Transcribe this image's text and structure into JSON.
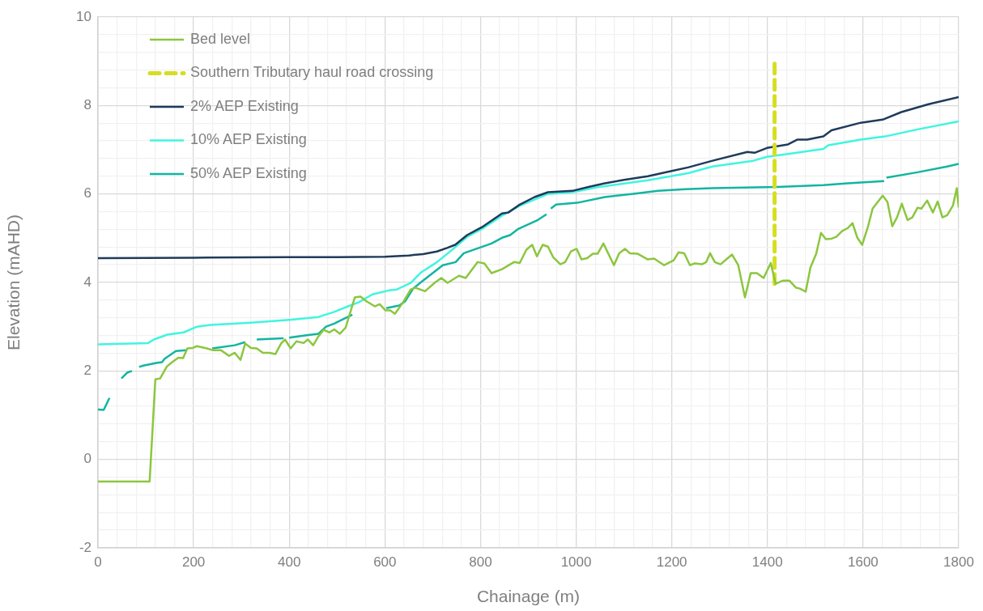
{
  "chart_data": {
    "type": "line",
    "xlabel": "Chainage (m)",
    "ylabel": "Elevation (mAHD)",
    "grid": true,
    "legend": "top left",
    "marker": "none",
    "xlim": [
      0,
      1800
    ],
    "ylim": [
      -2,
      10
    ],
    "xticks": [
      0,
      {
        "value": 40,
        "label": null
      },
      {
        "value": 80,
        "label": null
      },
      {
        "value": 120,
        "label": null
      },
      {
        "value": 160,
        "label": null
      },
      200,
      {
        "value": 240,
        "label": null
      },
      {
        "value": 280,
        "label": null
      },
      {
        "value": 320,
        "label": null
      },
      {
        "value": 360,
        "label": null
      },
      400,
      {
        "value": 440,
        "label": null
      },
      {
        "value": 480,
        "label": null
      },
      {
        "value": 520,
        "label": null
      },
      {
        "value": 560,
        "label": null
      },
      600,
      {
        "value": 640,
        "label": null
      },
      {
        "value": 680,
        "label": null
      },
      {
        "value": 720,
        "label": null
      },
      {
        "value": 760,
        "label": null
      },
      800,
      {
        "value": 840,
        "label": null
      },
      {
        "value": 880,
        "label": null
      },
      {
        "value": 920,
        "label": null
      },
      {
        "value": 960,
        "label": null
      },
      1000,
      {
        "value": 1040,
        "label": null
      },
      {
        "value": 1080,
        "label": null
      },
      {
        "value": 1120,
        "label": null
      },
      {
        "value": 1160,
        "label": null
      },
      1200,
      {
        "value": 1240,
        "label": null
      },
      {
        "value": 1280,
        "label": null
      },
      {
        "value": 1320,
        "label": null
      },
      {
        "value": 1360,
        "label": null
      },
      1400,
      {
        "value": 1440,
        "label": null
      },
      {
        "value": 1480,
        "label": null
      },
      {
        "value": 1520,
        "label": null
      },
      {
        "value": 1560,
        "label": null
      },
      1600,
      {
        "value": 1640,
        "label": null
      },
      {
        "value": 1680,
        "label": null
      },
      {
        "value": 1720,
        "label": null
      },
      {
        "value": 1760,
        "label": null
      },
      1800
    ],
    "yticks": [
      -2,
      {
        "value": -1.6,
        "label": null
      },
      {
        "value": -1.2,
        "label": null
      },
      {
        "value": -0.8,
        "label": null
      },
      {
        "value": -0.4,
        "label": null
      },
      0,
      {
        "value": 0.4,
        "label": null
      },
      {
        "value": 0.8,
        "label": null
      },
      {
        "value": 1.2,
        "label": null
      },
      {
        "value": 1.6,
        "label": null
      },
      2,
      {
        "value": 2.4,
        "label": null
      },
      {
        "value": 2.8,
        "label": null
      },
      {
        "value": 3.2,
        "label": null
      },
      {
        "value": 3.6,
        "label": null
      },
      4,
      {
        "value": 4.4,
        "label": null
      },
      {
        "value": 4.8,
        "label": null
      },
      {
        "value": 5.2,
        "label": null
      },
      {
        "value": 5.6,
        "label": null
      },
      6,
      {
        "value": 6.4,
        "label": null
      },
      {
        "value": 6.8,
        "label": null
      },
      {
        "value": 7.2,
        "label": null
      },
      {
        "value": 7.6,
        "label": null
      },
      8,
      {
        "value": 8.4,
        "label": null
      },
      {
        "value": 8.8,
        "label": null
      },
      {
        "value": 9.2,
        "label": null
      },
      {
        "value": 9.6,
        "label": null
      },
      10
    ],
    "series": [
      {
        "name": "Bed level",
        "type": "line",
        "color": "#8cc63f",
        "x": [
          0,
          108,
          120,
          130,
          144,
          154,
          168,
          178,
          187,
          198,
          207,
          224,
          240,
          257,
          274,
          286,
          298,
          308,
          320,
          332,
          345,
          359,
          371,
          383,
          391,
          403,
          415,
          430,
          439,
          450,
          461,
          472,
          484,
          494,
          506,
          518,
          537,
          549,
          562,
          579,
          589,
          601,
          611,
          621,
          638,
          654,
          664,
          684,
          704,
          718,
          731,
          755,
          769,
          794,
          808,
          823,
          845,
          870,
          882,
          896,
          908,
          918,
          930,
          941,
          952,
          967,
          977,
          989,
          1001,
          1011,
          1023,
          1035,
          1045,
          1057,
          1079,
          1090,
          1102,
          1112,
          1128,
          1150,
          1163,
          1184,
          1204,
          1214,
          1226,
          1238,
          1248,
          1263,
          1272,
          1280,
          1290,
          1302,
          1316,
          1326,
          1339,
          1353,
          1365,
          1378,
          1392,
          1407,
          1417,
          1432,
          1446,
          1460,
          1468,
          1480,
          1490,
          1502,
          1512,
          1522,
          1534,
          1544,
          1556,
          1568,
          1578,
          1588,
          1598,
          1610,
          1620,
          1641,
          1651,
          1661,
          1671,
          1681,
          1693,
          1703,
          1714,
          1722,
          1734,
          1746,
          1756,
          1766,
          1776,
          1788,
          1796,
          1800
        ],
        "values": [
          -0.5,
          -0.5,
          1.81,
          1.83,
          2.1,
          2.19,
          2.3,
          2.29,
          2.51,
          2.52,
          2.56,
          2.52,
          2.47,
          2.47,
          2.34,
          2.41,
          2.25,
          2.62,
          2.52,
          2.51,
          2.41,
          2.41,
          2.38,
          2.62,
          2.71,
          2.51,
          2.67,
          2.63,
          2.71,
          2.58,
          2.78,
          2.93,
          2.87,
          2.94,
          2.84,
          2.98,
          3.66,
          3.68,
          3.57,
          3.46,
          3.51,
          3.37,
          3.37,
          3.29,
          3.55,
          3.84,
          3.88,
          3.8,
          3.99,
          4.1,
          3.99,
          4.15,
          4.1,
          4.46,
          4.43,
          4.21,
          4.3,
          4.46,
          4.44,
          4.74,
          4.85,
          4.59,
          4.85,
          4.81,
          4.57,
          4.41,
          4.46,
          4.7,
          4.76,
          4.52,
          4.55,
          4.65,
          4.65,
          4.88,
          4.39,
          4.66,
          4.76,
          4.66,
          4.65,
          4.52,
          4.54,
          4.39,
          4.5,
          4.68,
          4.66,
          4.39,
          4.43,
          4.41,
          4.46,
          4.66,
          4.46,
          4.41,
          4.54,
          4.63,
          4.39,
          3.66,
          4.21,
          4.21,
          4.1,
          4.44,
          3.97,
          4.04,
          4.04,
          3.88,
          3.86,
          3.79,
          4.34,
          4.65,
          5.12,
          4.98,
          4.99,
          5.03,
          5.16,
          5.23,
          5.34,
          5.01,
          4.85,
          5.25,
          5.67,
          5.96,
          5.82,
          5.27,
          5.47,
          5.78,
          5.41,
          5.47,
          5.69,
          5.67,
          5.85,
          5.58,
          5.83,
          5.47,
          5.52,
          5.74,
          6.13,
          5.69
        ]
      },
      {
        "name": "Southern Tributary haul road crossing",
        "type": "line",
        "line_style": "dashed",
        "color": "#d6de23",
        "x": [
          1415,
          1415
        ],
        "values": [
          3.97,
          9.05
        ]
      },
      {
        "name": "2% AEP Existing",
        "type": "line",
        "color": "#1f3b5a",
        "x": [
          0,
          200,
          400,
          500,
          600,
          650,
          680,
          709,
          730,
          747,
          772,
          803,
          845,
          858,
          882,
          913,
          941,
          992,
          1026,
          1060,
          1100,
          1150,
          1200,
          1234,
          1285,
          1358,
          1373,
          1399,
          1443,
          1463,
          1483,
          1517,
          1534,
          1595,
          1641,
          1680,
          1737,
          1800
        ],
        "values": [
          4.55,
          4.56,
          4.57,
          4.57,
          4.58,
          4.61,
          4.64,
          4.7,
          4.78,
          4.85,
          5.07,
          5.25,
          5.56,
          5.58,
          5.76,
          5.93,
          6.04,
          6.07,
          6.16,
          6.24,
          6.32,
          6.4,
          6.52,
          6.6,
          6.75,
          6.95,
          6.93,
          7.04,
          7.12,
          7.23,
          7.23,
          7.3,
          7.44,
          7.61,
          7.68,
          7.85,
          8.03,
          8.19
        ]
      },
      {
        "name": "10% AEP Existing",
        "type": "line",
        "color": "#40f5e0",
        "x": [
          0,
          105,
          117,
          145,
          179,
          207,
          235,
          320,
          405,
          461,
          493,
          523,
          545,
          574,
          608,
          625,
          654,
          676,
          709,
          743,
          772,
          803,
          845,
          882,
          941,
          992,
          1048,
          1150,
          1234,
          1285,
          1370,
          1399,
          1446,
          1517,
          1527,
          1595,
          1646,
          1714,
          1800
        ],
        "values": [
          2.6,
          2.63,
          2.71,
          2.82,
          2.87,
          3.0,
          3.04,
          3.09,
          3.16,
          3.22,
          3.33,
          3.46,
          3.55,
          3.73,
          3.82,
          3.84,
          3.99,
          4.23,
          4.46,
          4.76,
          5.03,
          5.21,
          5.51,
          5.73,
          6.0,
          6.04,
          6.16,
          6.31,
          6.47,
          6.62,
          6.75,
          6.84,
          6.91,
          7.02,
          7.1,
          7.23,
          7.3,
          7.46,
          7.64
        ]
      },
      {
        "name": "50% AEP Existing",
        "type": "line",
        "color": "#12b5a0",
        "x": [
          0,
          12,
          24,
          36,
          49,
          61,
          71,
          78,
          86,
          95,
          122,
          134,
          139,
          163,
          185,
          212,
          239,
          286,
          308,
          320,
          332,
          388,
          394,
          400,
          433,
          461,
          477,
          494,
          511,
          532,
          568,
          603,
          630,
          642,
          659,
          676,
          721,
          748,
          765,
          823,
          845,
          862,
          879,
          918,
          938,
          942,
          947,
          958,
          1002,
          1060,
          1116,
          1172,
          1229,
          1285,
          1421,
          1517,
          1568,
          1644,
          1646,
          1649,
          1714,
          1776,
          1800
        ],
        "values": [
          1.13,
          1.12,
          1.39,
          null,
          1.83,
          1.96,
          2.0,
          null,
          2.09,
          2.12,
          2.18,
          2.2,
          2.27,
          2.45,
          2.47,
          null,
          2.51,
          2.58,
          2.65,
          null,
          2.71,
          2.74,
          null,
          2.75,
          2.8,
          2.84,
          3.0,
          3.07,
          3.16,
          3.27,
          null,
          3.42,
          3.48,
          3.57,
          3.86,
          4.01,
          4.39,
          4.46,
          4.66,
          4.88,
          5.01,
          5.07,
          5.21,
          5.4,
          5.54,
          null,
          5.67,
          5.76,
          5.8,
          5.93,
          6.0,
          6.07,
          6.11,
          6.13,
          6.16,
          6.2,
          6.24,
          6.29,
          null,
          6.37,
          6.49,
          6.62,
          6.68
        ]
      }
    ]
  }
}
